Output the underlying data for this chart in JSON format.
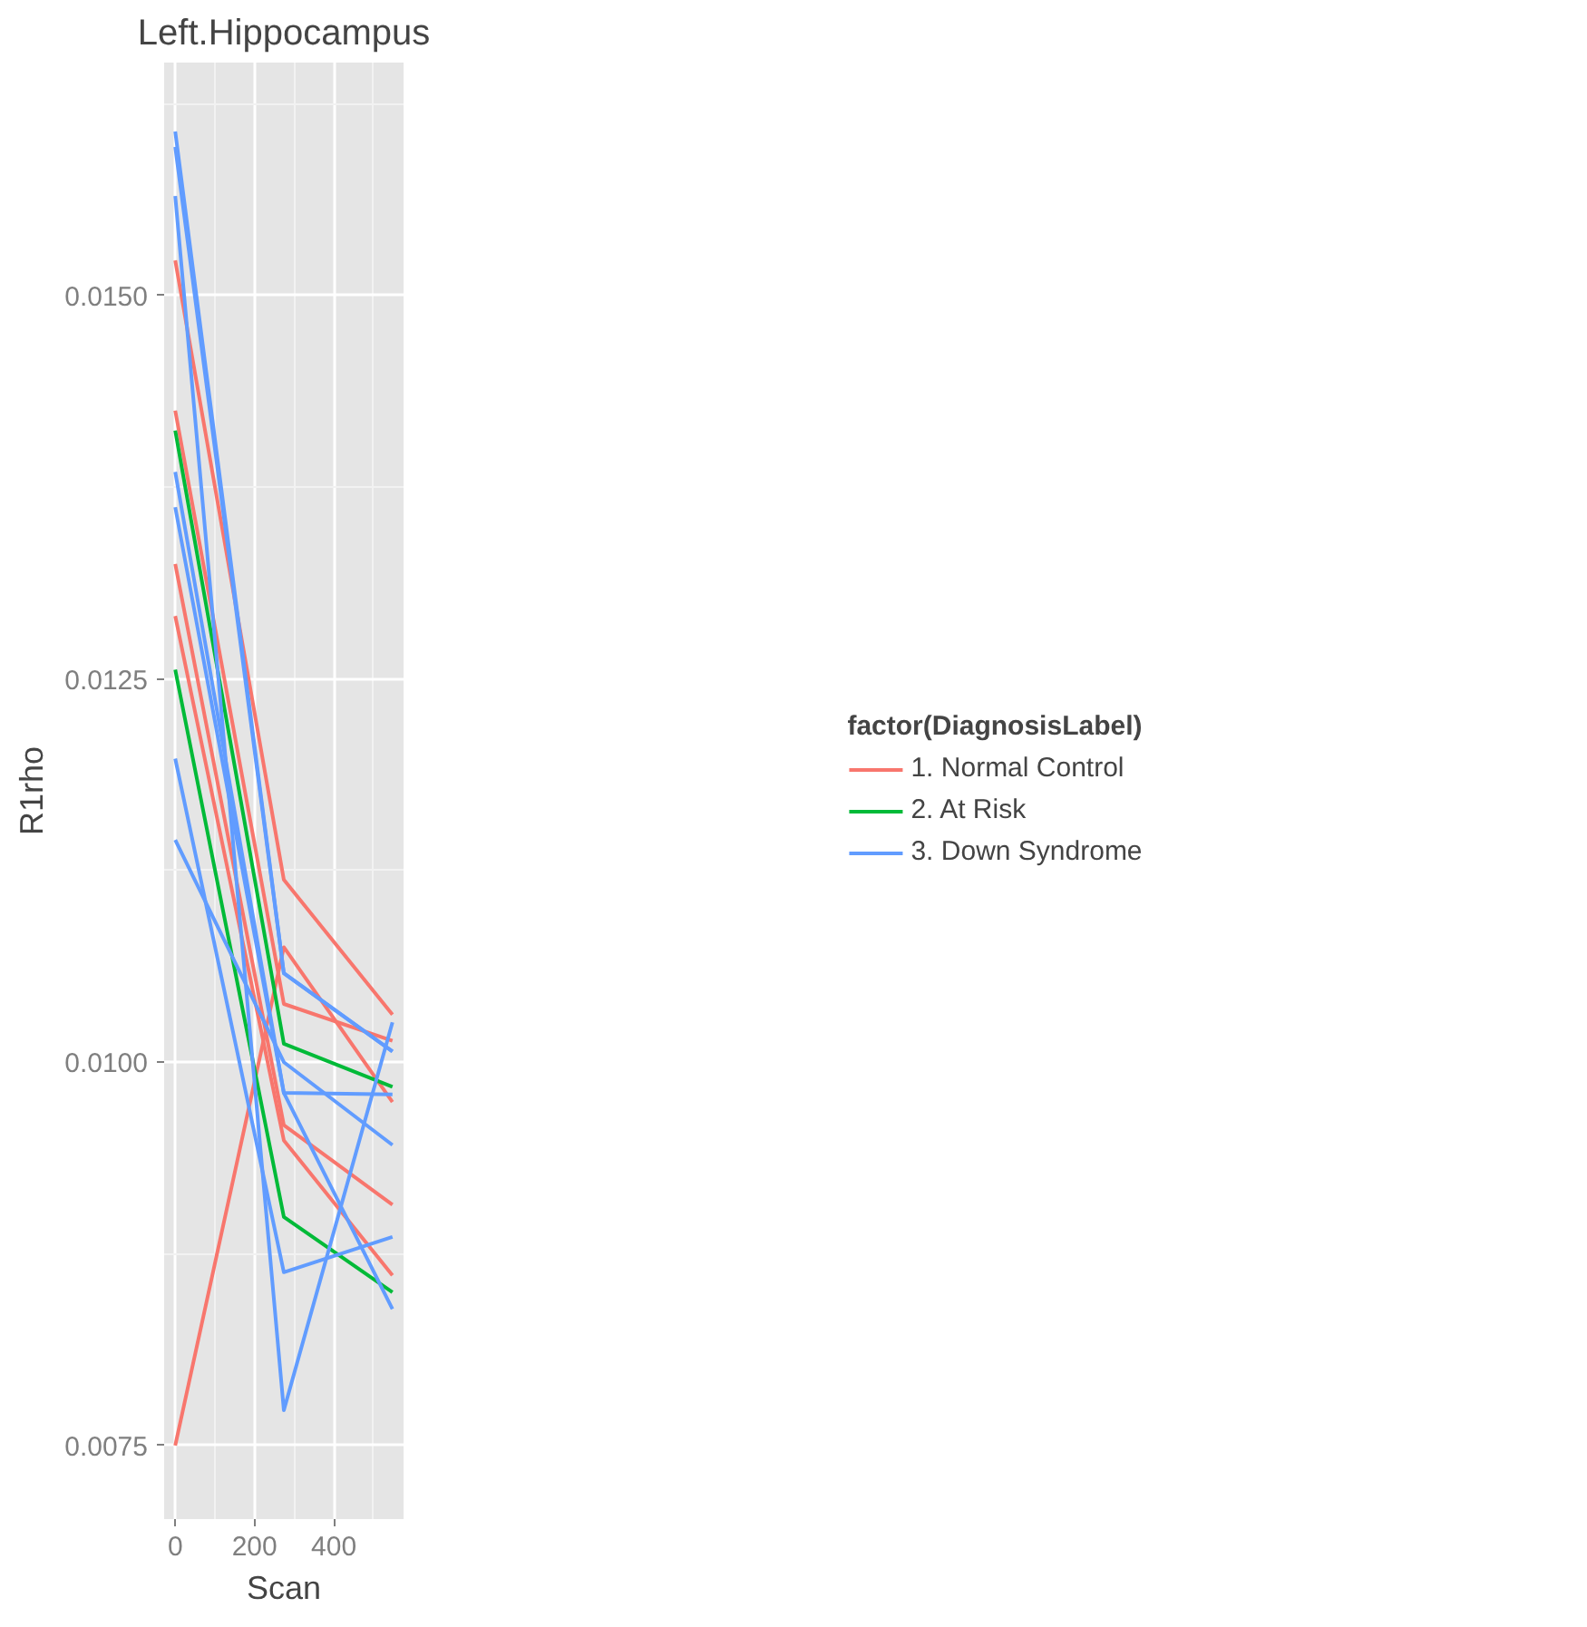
{
  "chart_data": {
    "type": "line",
    "title": "Left.Hippocampus",
    "xlabel": "Scan",
    "ylabel": "R1rho",
    "legend_title": "factor(DiagnosisLabel)",
    "x": [
      0,
      274,
      548
    ],
    "series": [
      {
        "name": "1. Normal Control",
        "color": "#f8766d",
        "values": [
          0.01523,
          0.01119,
          0.01031
        ]
      },
      {
        "color": "#f8766d",
        "values": [
          0.01425,
          0.01038,
          0.01014
        ]
      },
      {
        "color": "#f8766d",
        "values": [
          0.01325,
          0.00959,
          0.00907
        ]
      },
      {
        "color": "#f8766d",
        "values": [
          0.01291,
          0.00949,
          0.00861
        ]
      },
      {
        "color": "#f8766d",
        "values": [
          0.0075,
          0.01075,
          0.00974
        ]
      },
      {
        "name": "2. At Risk",
        "color": "#00ba38",
        "values": [
          0.01412,
          0.01012,
          0.00984
        ]
      },
      {
        "color": "#00ba38",
        "values": [
          0.01256,
          0.00899,
          0.0085
        ]
      },
      {
        "name": "3. Down Syndrome",
        "color": "#619cff",
        "values": [
          0.01607,
          0.01058,
          0.01007
        ]
      },
      {
        "color": "#619cff",
        "values": [
          0.01597,
          0.01058,
          0.01007
        ]
      },
      {
        "color": "#619cff",
        "values": [
          0.01565,
          0.00773,
          0.01026
        ]
      },
      {
        "color": "#619cff",
        "values": [
          0.01385,
          0.0098,
          0.00979
        ]
      },
      {
        "color": "#619cff",
        "values": [
          0.01362,
          0.0098,
          0.00839
        ]
      },
      {
        "color": "#619cff",
        "values": [
          0.01198,
          0.00863,
          0.00886
        ]
      },
      {
        "color": "#619cff",
        "values": [
          0.01145,
          0.01,
          0.00946
        ]
      }
    ],
    "xlim": [
      -28,
      576
    ],
    "ylim": [
      0.00702,
      0.01652
    ],
    "xticks": [
      0,
      200,
      400
    ],
    "yticks": [
      {
        "value": 0.0075,
        "label": "0.0075"
      },
      {
        "value": 0.01,
        "label": "0.0100"
      },
      {
        "value": 0.0125,
        "label": "0.0125"
      },
      {
        "value": 0.015,
        "label": "0.0150"
      }
    ],
    "grid": true,
    "legend": "right",
    "marker": "none",
    "line_style": "solid"
  }
}
